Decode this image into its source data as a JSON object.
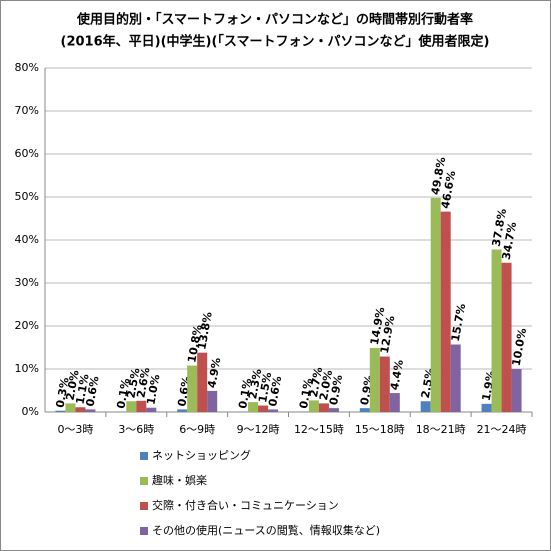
{
  "chart_data": {
    "type": "bar",
    "title": "使用目的別・「スマートフォン・パソコンなど」の時間帯別行動者率",
    "subtitle": "(2016年、平日)(中学生)(「スマートフォン・パソコンなど」使用者限定)",
    "categories": [
      "0～3時",
      "3～6時",
      "6～9時",
      "9～12時",
      "12～15時",
      "15～18時",
      "18～21時",
      "21～24時"
    ],
    "series": [
      {
        "name": "ネットショッピング",
        "color": "#4f81bd",
        "values": [
          0.3,
          0.1,
          0.6,
          0.1,
          0.1,
          0.9,
          2.5,
          1.9
        ],
        "value_labels": [
          "0.3%",
          "0.1%",
          "0.6%",
          "0.1%",
          "0.1%",
          "0.9%",
          "2.5%",
          "1.9%"
        ]
      },
      {
        "name": "趣味・娯楽",
        "color": "#9bbb59",
        "values": [
          2.0,
          2.5,
          10.8,
          2.3,
          2.7,
          14.9,
          49.8,
          37.8
        ],
        "value_labels": [
          "2.0%",
          "2.5%",
          "10.8%",
          "2.3%",
          "2.7%",
          "14.9%",
          "49.8%",
          "37.8%"
        ]
      },
      {
        "name": "交際・付き合い・コミュニケーション",
        "color": "#c0504d",
        "values": [
          1.1,
          2.6,
          13.8,
          1.5,
          2.0,
          12.9,
          46.6,
          34.7
        ],
        "value_labels": [
          "1.1%",
          "2.6%",
          "13.8%",
          "1.5%",
          "2.0%",
          "12.9%",
          "46.6%",
          "34.7%"
        ]
      },
      {
        "name": "その他の使用(ニュースの閲覧、情報収集など)",
        "color": "#8064a2",
        "values": [
          0.6,
          1.0,
          4.9,
          0.6,
          0.9,
          4.4,
          15.7,
          10.0
        ],
        "value_labels": [
          "0.6%",
          "1.0%",
          "4.9%",
          "0.6%",
          "0.9%",
          "4.4%",
          "15.7%",
          "10.0%"
        ]
      }
    ],
    "ylim": [
      0,
      80
    ],
    "yticks": [
      {
        "value": 0,
        "label": "0%"
      },
      {
        "value": 10,
        "label": "10%"
      },
      {
        "value": 20,
        "label": "20%"
      },
      {
        "value": 30,
        "label": "30%"
      },
      {
        "value": 40,
        "label": "40%"
      },
      {
        "value": 50,
        "label": "50%"
      },
      {
        "value": 60,
        "label": "60%"
      },
      {
        "value": 70,
        "label": "70%"
      },
      {
        "value": 80,
        "label": "80%"
      }
    ],
    "grid": true
  }
}
